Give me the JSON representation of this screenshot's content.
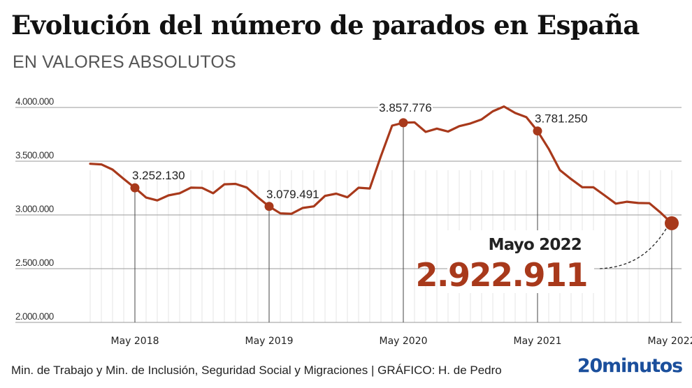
{
  "header": {
    "title": "Evolución del número de parados en España",
    "subtitle": "EN VALORES ABSOLUTOS"
  },
  "footer": {
    "source": "Min. de Trabajo y Min. de Inclusión, Seguridad Social y Migraciones  |  GRÁFICO: H. de Pedro",
    "logo": "20minutos"
  },
  "colors": {
    "line": "#a8391b",
    "grid": "#9a9a9a",
    "month_grid": "#e6e6e6",
    "logo": "#1b4f9c"
  },
  "chart_data": {
    "type": "line",
    "title": "Evolución del número de parados en España",
    "subtitle": "EN VALORES ABSOLUTOS",
    "xlabel": "",
    "ylabel": "",
    "ylim": [
      2000000,
      4000000
    ],
    "yticks": [
      2000000,
      2500000,
      3000000,
      3500000,
      4000000
    ],
    "ytick_labels": [
      "2.000.000",
      "2.500.000",
      "3.000.000",
      "3.500.000",
      "4.000.000"
    ],
    "xtick_labels": [
      {
        "label": "May 2018",
        "index": 4
      },
      {
        "label": "May 2019",
        "index": 16
      },
      {
        "label": "May 2020",
        "index": 28
      },
      {
        "label": "May 2021",
        "index": 40
      },
      {
        "label": "May 2022",
        "index": 52
      }
    ],
    "grid": true,
    "x": [
      "2018-01",
      "2018-02",
      "2018-03",
      "2018-04",
      "2018-05",
      "2018-06",
      "2018-07",
      "2018-08",
      "2018-09",
      "2018-10",
      "2018-11",
      "2018-12",
      "2019-01",
      "2019-02",
      "2019-03",
      "2019-04",
      "2019-05",
      "2019-06",
      "2019-07",
      "2019-08",
      "2019-09",
      "2019-10",
      "2019-11",
      "2019-12",
      "2020-01",
      "2020-02",
      "2020-03",
      "2020-04",
      "2020-05",
      "2020-06",
      "2020-07",
      "2020-08",
      "2020-09",
      "2020-10",
      "2020-11",
      "2020-12",
      "2021-01",
      "2021-02",
      "2021-03",
      "2021-04",
      "2021-05",
      "2021-06",
      "2021-07",
      "2021-08",
      "2021-09",
      "2021-10",
      "2021-11",
      "2021-12",
      "2022-01",
      "2022-02",
      "2022-03",
      "2022-04",
      "2022-05"
    ],
    "series": [
      {
        "name": "Parados",
        "values": [
          3476000,
          3470000,
          3422000,
          3335000,
          3252130,
          3162000,
          3135000,
          3182000,
          3202000,
          3254000,
          3252000,
          3202000,
          3285000,
          3289000,
          3255000,
          3163000,
          3079491,
          3015000,
          3011000,
          3065000,
          3080000,
          3177000,
          3198000,
          3164000,
          3253000,
          3246000,
          3548000,
          3831000,
          3857776,
          3862000,
          3773000,
          3803000,
          3776000,
          3826000,
          3851000,
          3889000,
          3964000,
          4009000,
          3949000,
          3910000,
          3781250,
          3615000,
          3417000,
          3334000,
          3258000,
          3257000,
          3182000,
          3105000,
          3123000,
          3111000,
          3109000,
          3022000,
          2922911
        ]
      }
    ],
    "annotations": [
      {
        "index": 4,
        "label": "3.252.130"
      },
      {
        "index": 16,
        "label": "3.079.491"
      },
      {
        "index": 28,
        "label": "3.857.776"
      },
      {
        "index": 40,
        "label": "3.781.250"
      }
    ],
    "highlight": {
      "index": 52,
      "label": "Mayo 2022",
      "value_label": "2.922.911"
    }
  }
}
